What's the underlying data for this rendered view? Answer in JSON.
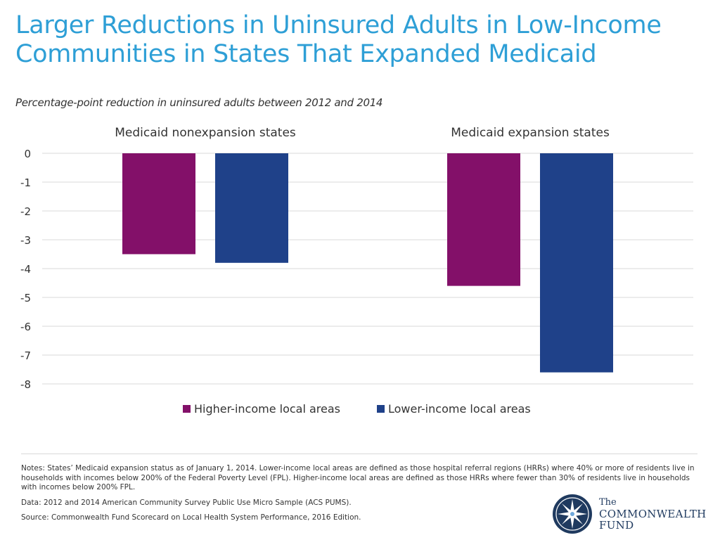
{
  "title_lines": [
    "Larger Reductions in Uninsured Adults in Low-Income",
    "Communities in States That Expanded Medicaid"
  ],
  "subtitle": "Percentage-point reduction in uninsured adults between 2012 and 2014",
  "chart_data": {
    "type": "bar",
    "categories": [
      "Medicaid nonexpansion states",
      "Medicaid expansion states"
    ],
    "series": [
      {
        "name": "Higher-income local areas",
        "values": [
          -3.5,
          -4.6
        ],
        "color": "#831069"
      },
      {
        "name": "Lower-income local areas",
        "values": [
          -3.8,
          -7.6
        ],
        "color": "#1f4189"
      }
    ],
    "ylim": [
      -8,
      0
    ],
    "yticks": [
      "0",
      "-1",
      "-2",
      "-3",
      "-4",
      "-5",
      "-6",
      "-7",
      "-8"
    ],
    "grid": true,
    "legend": "bottom"
  },
  "notes": {
    "notes_text": "Notes: States’ Medicaid expansion status as of January 1, 2014. Lower-income local areas are defined as those hospital referral regions (HRRs) where 40% or more of residents live in households with incomes below 200% of the Federal Poverty Level (FPL). Higher-income local areas are defined as those HRRs where fewer than 30% of residents live in households with incomes below 200% FPL.",
    "data_text": "Data: 2012 and 2014 American Community Survey Public Use Micro Sample (ACS PUMS).",
    "source_text": "Source: Commonwealth Fund Scorecard on Local Health System Performance, 2016 Edition."
  },
  "logo": {
    "line1": "The",
    "line2": "COMMONWEALTH",
    "line3": "FUND",
    "color": "#1f3a5f"
  }
}
